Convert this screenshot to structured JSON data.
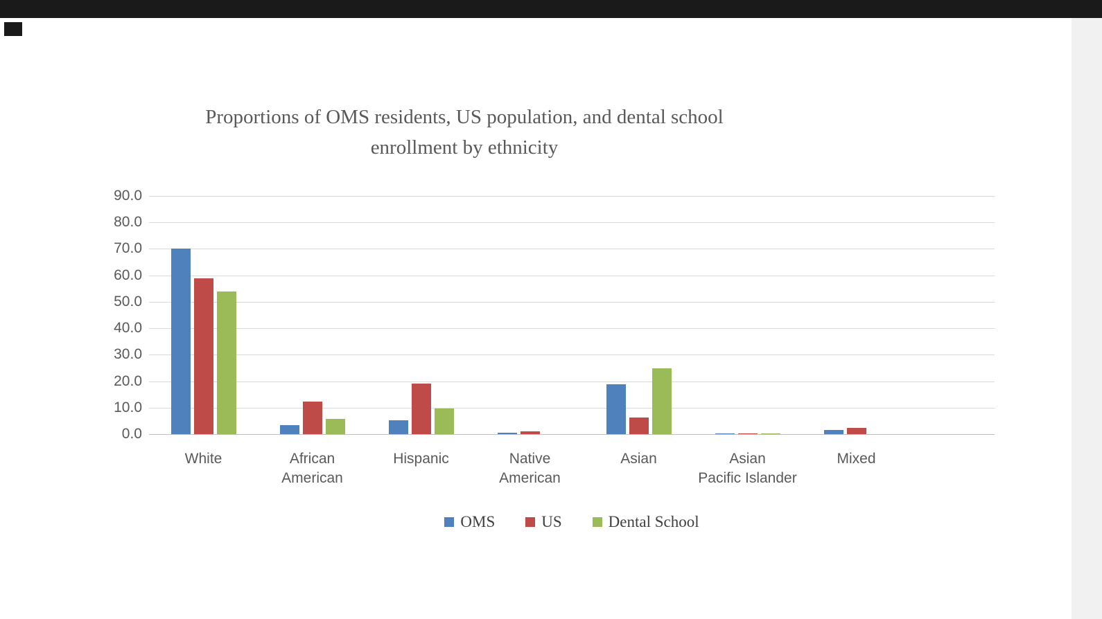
{
  "chart_data": {
    "type": "bar",
    "title": "Proportions of OMS residents, US population, and dental school\nenrollment by ethnicity",
    "categories": [
      "White",
      "African American",
      "Hispanic",
      "Native American",
      "Asian",
      "Asian Pacific Islander",
      "Mixed"
    ],
    "category_tick_labels": [
      "White",
      "African\nAmerican",
      "Hispanic",
      "Native\nAmerican",
      "Asian",
      "Asian\nPacific Islander",
      "Mixed"
    ],
    "series": [
      {
        "name": "OMS",
        "color": "#4F81BD",
        "values": [
          70.0,
          3.5,
          5.2,
          0.4,
          18.9,
          0.2,
          1.5
        ]
      },
      {
        "name": "US",
        "color": "#BE4B48",
        "values": [
          59.0,
          12.4,
          19.2,
          1.0,
          6.2,
          0.2,
          2.4
        ]
      },
      {
        "name": "Dental School",
        "color": "#9BBB59",
        "values": [
          54.0,
          5.7,
          9.7,
          0.0,
          24.8,
          0.2,
          0.0
        ]
      }
    ],
    "ylim": [
      0,
      90
    ],
    "ytick_step": 10,
    "ytick_labels": [
      "0.0",
      "10.0",
      "20.0",
      "30.0",
      "40.0",
      "50.0",
      "60.0",
      "70.0",
      "80.0",
      "90.0"
    ],
    "grid": true,
    "legend_position": "bottom"
  }
}
